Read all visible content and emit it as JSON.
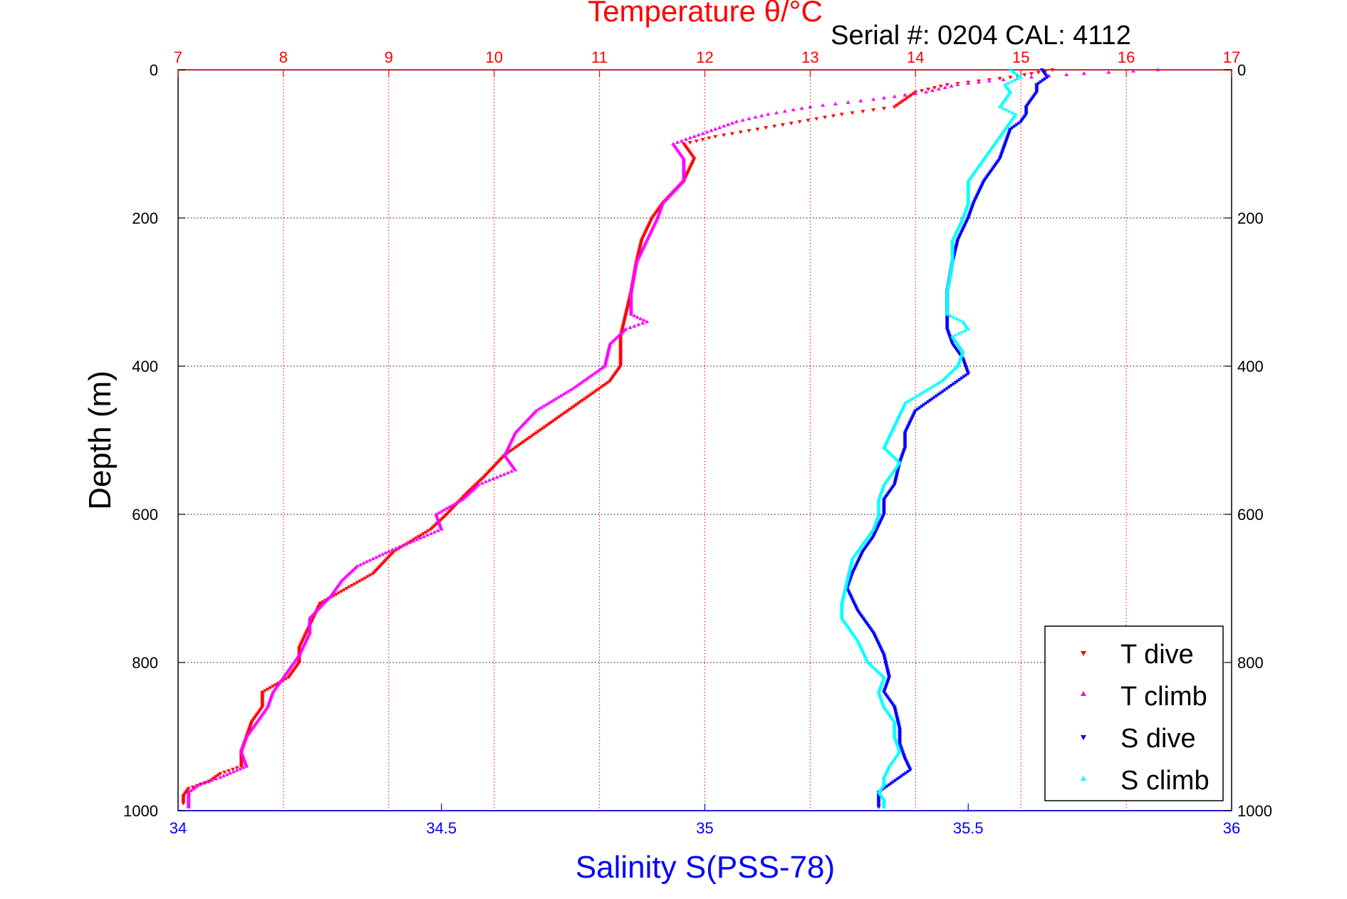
{
  "chart_data": {
    "type": "scatter",
    "title": "Temperature θ/°C",
    "subtitle": "Serial #: 0204  CAL: 4112",
    "xlabel_top": "Temperature θ/°C",
    "xlabel_bottom": "Salinity S(PSS-78)",
    "ylabel": "Depth (m)",
    "x_top_lim": [
      7,
      17
    ],
    "x_top_ticks": [
      "7",
      "8",
      "9",
      "10",
      "11",
      "12",
      "13",
      "14",
      "15",
      "16",
      "17"
    ],
    "x_bottom_lim": [
      34,
      36
    ],
    "x_bottom_ticks": [
      "34",
      "34.5",
      "35",
      "35.5",
      "36"
    ],
    "ylim": [
      0,
      1000
    ],
    "y_ticks": [
      "0",
      "200",
      "400",
      "600",
      "800",
      "1000"
    ],
    "y_reversed": true,
    "grid": true,
    "legend_position": "bottom-right",
    "colors": {
      "t_dive": "#ff0000",
      "t_climb": "#ff00ff",
      "s_dive": "#0000ff",
      "s_climb": "#00ffff",
      "top_axis": "#ff0000",
      "bottom_axis": "#0000ff"
    },
    "series": [
      {
        "name": "T dive",
        "axis": "top",
        "marker": "down-triangle",
        "depth": [
          0,
          5,
          10,
          15,
          20,
          30,
          40,
          50,
          60,
          70,
          80,
          90,
          100,
          120,
          150,
          180,
          200,
          230,
          260,
          300,
          330,
          360,
          380,
          400,
          420,
          450,
          480,
          500,
          520,
          550,
          570,
          600,
          620,
          650,
          680,
          700,
          720,
          750,
          780,
          800,
          820,
          840,
          860,
          880,
          900,
          920,
          940,
          950,
          960,
          970,
          980,
          990
        ],
        "values": [
          15.3,
          15.1,
          14.9,
          14.6,
          14.3,
          14.0,
          13.9,
          13.8,
          13.3,
          12.9,
          12.5,
          12.1,
          11.8,
          11.9,
          11.8,
          11.6,
          11.5,
          11.4,
          11.35,
          11.3,
          11.25,
          11.2,
          11.2,
          11.2,
          11.1,
          10.8,
          10.5,
          10.3,
          10.1,
          9.9,
          9.75,
          9.55,
          9.4,
          9.05,
          8.85,
          8.6,
          8.35,
          8.25,
          8.15,
          8.15,
          8.05,
          7.8,
          7.8,
          7.7,
          7.65,
          7.6,
          7.6,
          7.4,
          7.3,
          7.1,
          7.05,
          7.05
        ]
      },
      {
        "name": "T climb",
        "axis": "top",
        "marker": "up-triangle",
        "depth": [
          0,
          5,
          10,
          15,
          20,
          30,
          40,
          50,
          60,
          70,
          80,
          90,
          100,
          120,
          150,
          180,
          200,
          230,
          260,
          300,
          330,
          340,
          350,
          370,
          400,
          430,
          460,
          490,
          520,
          540,
          560,
          580,
          600,
          620,
          650,
          670,
          690,
          710,
          740,
          760,
          790,
          820,
          840,
          860,
          880,
          900,
          920,
          940,
          955,
          965,
          975,
          985,
          995
        ],
        "values": [
          16.3,
          15.6,
          15.1,
          14.7,
          14.4,
          14.1,
          13.6,
          13.0,
          12.6,
          12.3,
          12.1,
          11.9,
          11.7,
          11.8,
          11.8,
          11.6,
          11.55,
          11.45,
          11.35,
          11.3,
          11.3,
          11.45,
          11.25,
          11.1,
          11.05,
          10.75,
          10.4,
          10.2,
          10.1,
          10.2,
          9.85,
          9.7,
          9.45,
          9.5,
          9.0,
          8.7,
          8.55,
          8.45,
          8.25,
          8.25,
          8.15,
          8.0,
          7.9,
          7.85,
          7.75,
          7.65,
          7.6,
          7.65,
          7.4,
          7.2,
          7.1,
          7.1,
          7.1
        ]
      },
      {
        "name": "S dive",
        "axis": "bottom",
        "marker": "down-triangle",
        "depth": [
          0,
          10,
          20,
          30,
          40,
          50,
          60,
          70,
          80,
          100,
          120,
          150,
          180,
          200,
          230,
          260,
          300,
          330,
          350,
          370,
          390,
          410,
          430,
          460,
          490,
          510,
          530,
          560,
          580,
          600,
          630,
          650,
          680,
          700,
          730,
          760,
          790,
          820,
          840,
          860,
          890,
          910,
          930,
          945,
          955,
          965,
          975,
          985,
          995
        ],
        "values": [
          35.64,
          35.65,
          35.63,
          35.63,
          35.62,
          35.61,
          35.61,
          35.6,
          35.58,
          35.57,
          35.56,
          35.53,
          35.51,
          35.5,
          35.48,
          35.47,
          35.46,
          35.46,
          35.46,
          35.47,
          35.49,
          35.5,
          35.46,
          35.4,
          35.38,
          35.38,
          35.37,
          35.36,
          35.34,
          35.34,
          35.32,
          35.3,
          35.28,
          35.27,
          35.29,
          35.32,
          35.34,
          35.35,
          35.34,
          35.36,
          35.37,
          35.37,
          35.38,
          35.39,
          35.37,
          35.35,
          35.33,
          35.33,
          35.33
        ]
      },
      {
        "name": "S climb",
        "axis": "bottom",
        "marker": "up-triangle",
        "depth": [
          0,
          10,
          20,
          30,
          40,
          50,
          60,
          70,
          80,
          100,
          120,
          150,
          180,
          200,
          230,
          260,
          300,
          330,
          340,
          350,
          360,
          380,
          400,
          420,
          450,
          480,
          510,
          530,
          540,
          560,
          580,
          600,
          620,
          640,
          660,
          690,
          720,
          740,
          770,
          800,
          820,
          840,
          860,
          880,
          900,
          920,
          940,
          955,
          965,
          975,
          985,
          995
        ],
        "values": [
          35.58,
          35.6,
          35.57,
          35.58,
          35.57,
          35.56,
          35.59,
          35.58,
          35.57,
          35.55,
          35.53,
          35.5,
          35.5,
          35.49,
          35.47,
          35.47,
          35.46,
          35.46,
          35.49,
          35.5,
          35.47,
          35.49,
          35.48,
          35.45,
          35.38,
          35.36,
          35.34,
          35.37,
          35.36,
          35.34,
          35.33,
          35.33,
          35.32,
          35.3,
          35.28,
          35.27,
          35.26,
          35.26,
          35.29,
          35.31,
          35.34,
          35.33,
          35.34,
          35.36,
          35.36,
          35.37,
          35.35,
          35.34,
          35.34,
          35.33,
          35.34,
          35.34
        ]
      }
    ],
    "legend": [
      "T dive",
      "T climb",
      "S dive",
      "S climb"
    ]
  }
}
